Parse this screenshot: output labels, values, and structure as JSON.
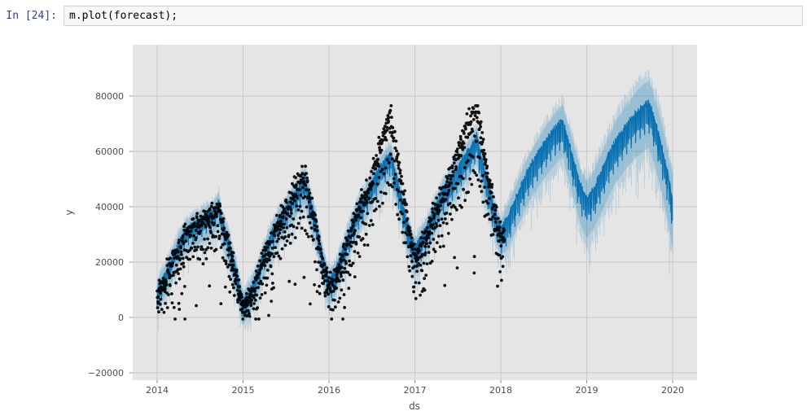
{
  "notebook": {
    "prompt": "In [24]:",
    "code": "m.plot(forecast);"
  },
  "chart_data": {
    "type": "line",
    "title": "",
    "xlabel": "ds",
    "ylabel": "y",
    "x_ticks": [
      2014,
      2015,
      2016,
      2017,
      2018,
      2019,
      2020
    ],
    "x_tick_labels": [
      "2014",
      "2015",
      "2016",
      "2017",
      "2018",
      "2019",
      "2020"
    ],
    "y_ticks": [
      -20000,
      0,
      20000,
      40000,
      60000,
      80000
    ],
    "y_tick_labels": [
      "−20000",
      "0",
      "20000",
      "40000",
      "60000",
      "80000"
    ],
    "xlim": [
      2013.72,
      2020.28
    ],
    "ylim": [
      -22600,
      98500
    ],
    "grid": true,
    "legend": "none",
    "panel_bg": "#e5e5e5",
    "grid_color": "#c9c9c9",
    "tick_mark_color": "#8c8c8c",
    "band_color": "rgba(0,114,178,0.16)",
    "stripe_color": "rgba(0,114,178,0.20)",
    "history_end": 2018.04,
    "forecast_end": 2020.0,
    "seed": 7,
    "render": {
      "amp_base": 2400,
      "amp_slope": 300,
      "up_hist": 4300,
      "lo_hist": 5200,
      "up_future_base": 5600,
      "up_future_slope": 3000,
      "lo_future_base": 6400,
      "lo_future_slope": 3200,
      "spike_hist": 8000,
      "spike_future": 11000,
      "trough_level": 30000,
      "week_pattern": [
        1.0,
        0.8,
        0.95,
        0.7,
        0.9,
        -0.75,
        -1.0
      ],
      "point_radius": 1.9,
      "noise_sigma": 2100
    },
    "series": [
      {
        "name": "yhat_forecast",
        "kind": "line",
        "color": "#0b72b1",
        "x": [
          2014.0,
          2014.08,
          2014.17,
          2014.25,
          2014.33,
          2014.42,
          2014.5,
          2014.58,
          2014.67,
          2014.72,
          2014.75,
          2014.83,
          2014.92,
          2015.0,
          2015.08,
          2015.17,
          2015.25,
          2015.33,
          2015.42,
          2015.5,
          2015.58,
          2015.67,
          2015.72,
          2015.75,
          2015.83,
          2015.92,
          2016.0,
          2016.08,
          2016.17,
          2016.25,
          2016.33,
          2016.42,
          2016.5,
          2016.58,
          2016.67,
          2016.72,
          2016.75,
          2016.83,
          2016.92,
          2017.0,
          2017.08,
          2017.17,
          2017.25,
          2017.33,
          2017.42,
          2017.5,
          2017.58,
          2017.67,
          2017.72,
          2017.75,
          2017.83,
          2017.92,
          2018.0,
          2018.08,
          2018.17,
          2018.25,
          2018.33,
          2018.42,
          2018.5,
          2018.58,
          2018.67,
          2018.72,
          2018.75,
          2018.83,
          2018.92,
          2019.0,
          2019.08,
          2019.17,
          2019.25,
          2019.33,
          2019.42,
          2019.5,
          2019.58,
          2019.67,
          2019.72,
          2019.75,
          2019.83,
          2019.92,
          2020.0
        ],
        "y": [
          8000,
          13000,
          19000,
          25000,
          29500,
          32000,
          33000,
          35000,
          37000,
          40000,
          33500,
          26000,
          15000,
          3500,
          7500,
          14500,
          22000,
          28500,
          33500,
          37500,
          41500,
          45500,
          48000,
          44000,
          35000,
          21000,
          10500,
          15000,
          22500,
          30000,
          36500,
          41500,
          46500,
          51000,
          55000,
          57000,
          52500,
          42500,
          30000,
          22500,
          26500,
          32500,
          38500,
          43500,
          47500,
          51500,
          55500,
          59500,
          63000,
          58000,
          48000,
          37000,
          29000,
          33000,
          39500,
          45500,
          51000,
          55500,
          59500,
          63000,
          66500,
          68000,
          64500,
          55500,
          45000,
          39500,
          43000,
          49000,
          55000,
          60000,
          64000,
          67500,
          70500,
          73000,
          74000,
          72000,
          63500,
          52000,
          39000
        ]
      },
      {
        "name": "uncertainty_interval",
        "kind": "band",
        "color": "rgba(0,114,178,0.2)",
        "follows": "yhat_forecast"
      },
      {
        "name": "observed_points",
        "kind": "scatter",
        "color": "#000000",
        "x_range": [
          2014.0,
          2018.04
        ],
        "week_effect": [
          0.05,
          0.0,
          0.04,
          -0.02,
          0.02,
          -0.17,
          -0.31
        ],
        "overshoots": [
          {
            "start": 2015.5,
            "end": 2015.85,
            "peak": 0.06
          },
          {
            "start": 2016.45,
            "end": 2016.98,
            "peak": 0.24
          },
          {
            "start": 2017.35,
            "end": 2017.98,
            "peak": 0.2
          }
        ]
      }
    ]
  }
}
